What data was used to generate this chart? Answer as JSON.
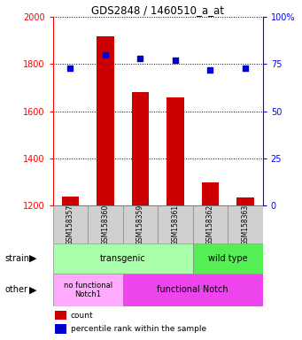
{
  "title": "GDS2848 / 1460510_a_at",
  "samples": [
    "GSM158357",
    "GSM158360",
    "GSM158359",
    "GSM158361",
    "GSM158362",
    "GSM158363"
  ],
  "bar_values": [
    1240,
    1920,
    1680,
    1660,
    1300,
    1235
  ],
  "percentile_values": [
    73,
    80,
    78,
    77,
    72,
    73
  ],
  "ylim_left": [
    1200,
    2000
  ],
  "ylim_right": [
    0,
    100
  ],
  "yticks_left": [
    1200,
    1400,
    1600,
    1800,
    2000
  ],
  "yticks_right": [
    0,
    25,
    50,
    75,
    100
  ],
  "bar_color": "#cc0000",
  "dot_color": "#0000cc",
  "bar_width": 0.5,
  "transgenic_color": "#aaffaa",
  "wildtype_color": "#55ee55",
  "nofunc_color": "#ffaaff",
  "func_color": "#ee44ee",
  "gray_box_color": "#d0d0d0",
  "legend_count_color": "#cc0000",
  "legend_dot_color": "#0000cc"
}
